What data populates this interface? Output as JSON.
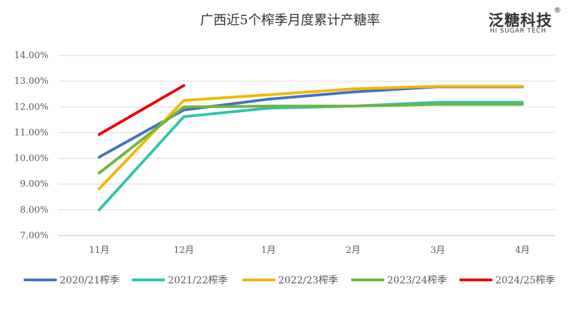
{
  "chart_data": {
    "type": "line",
    "title": "广西近5个榨季月度累计产糖率",
    "xlabel": "",
    "ylabel": "",
    "categories": [
      "11月",
      "12月",
      "1月",
      "2月",
      "3月",
      "4月"
    ],
    "ylim": [
      7,
      14
    ],
    "yticks": [
      7,
      8,
      9,
      10,
      11,
      12,
      13,
      14
    ],
    "ytick_labels": [
      "7.00%",
      "8.00%",
      "9.00%",
      "10.00%",
      "11.00%",
      "12.00%",
      "13.00%",
      "14.00%"
    ],
    "grid": true,
    "legend_position": "bottom",
    "series": [
      {
        "name": "2020/21榨季",
        "color": "#4472C4",
        "values": [
          10.05,
          11.88,
          12.3,
          12.58,
          12.78,
          12.78
        ]
      },
      {
        "name": "2021/22榨季",
        "color": "#2EC4B0",
        "values": [
          8.0,
          11.62,
          11.95,
          12.03,
          12.18,
          12.18
        ]
      },
      {
        "name": "2022/23榨季",
        "color": "#F2B705",
        "values": [
          8.82,
          12.25,
          12.47,
          12.7,
          12.8,
          12.8
        ]
      },
      {
        "name": "2023/24榨季",
        "color": "#70B441",
        "values": [
          9.43,
          12.0,
          12.03,
          12.03,
          12.1,
          12.1
        ]
      },
      {
        "name": "2024/25榨季",
        "color": "#EE0000",
        "values": [
          10.93,
          12.83,
          null,
          null,
          null,
          null
        ]
      }
    ]
  },
  "brand": {
    "name": "泛糖科技",
    "registered_mark": "®",
    "subtitle": "HI SUGAR TECH"
  }
}
